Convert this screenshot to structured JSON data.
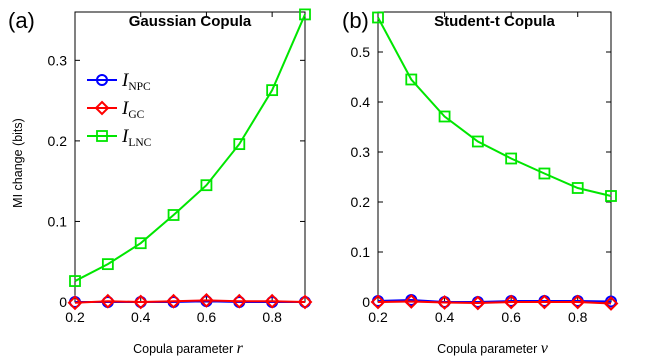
{
  "chart_data": [
    {
      "panel_label": "(a)",
      "type": "line",
      "title": "Gaussian Copula",
      "xlabel": "Copula parameter",
      "xlabel_symbol": "r",
      "ylabel": "MI change (bits)",
      "xlim": [
        0.2,
        0.9
      ],
      "ylim": [
        0,
        0.36
      ],
      "xticks": [
        0.2,
        0.4,
        0.6,
        0.8
      ],
      "yticks": [
        0,
        0.1,
        0.2,
        0.3
      ],
      "x": [
        0.2,
        0.3,
        0.4,
        0.5,
        0.6,
        0.7,
        0.8,
        0.9
      ],
      "legend": "top-left",
      "series": [
        {
          "name": "I",
          "subscript": "NPC",
          "color": "#0000ff",
          "marker": "circle",
          "values": [
            0.0,
            0.0,
            0.0,
            0.0,
            0.001,
            0.0,
            0.0,
            0.0
          ]
        },
        {
          "name": "I",
          "subscript": "GC",
          "color": "#ff0000",
          "marker": "diamond",
          "values": [
            -0.001,
            0.001,
            0.0,
            0.001,
            0.002,
            0.001,
            0.001,
            0.0
          ]
        },
        {
          "name": "I",
          "subscript": "LNC",
          "color": "#00e600",
          "marker": "square",
          "values": [
            0.026,
            0.047,
            0.073,
            0.108,
            0.145,
            0.196,
            0.263,
            0.357
          ]
        }
      ]
    },
    {
      "panel_label": "(b)",
      "type": "line",
      "title": "Student-t Copula",
      "xlabel": "Copula parameter",
      "xlabel_symbol": "ν",
      "ylabel": "",
      "xlim": [
        0.2,
        0.9
      ],
      "ylim": [
        0,
        0.58
      ],
      "xticks": [
        0.2,
        0.4,
        0.6,
        0.8
      ],
      "yticks": [
        0,
        0.1,
        0.2,
        0.3,
        0.4,
        0.5
      ],
      "x": [
        0.2,
        0.3,
        0.4,
        0.5,
        0.6,
        0.7,
        0.8,
        0.9
      ],
      "series": [
        {
          "color": "#0000ff",
          "marker": "circle",
          "values": [
            0.002,
            0.004,
            0.0,
            0.0,
            0.002,
            0.002,
            0.002,
            0.001
          ]
        },
        {
          "color": "#ff0000",
          "marker": "diamond",
          "values": [
            0.0,
            0.001,
            -0.001,
            -0.002,
            0.0,
            0.0,
            0.0,
            -0.003
          ]
        },
        {
          "color": "#00e600",
          "marker": "square",
          "values": [
            0.569,
            0.445,
            0.371,
            0.321,
            0.287,
            0.257,
            0.228,
            0.212
          ]
        }
      ]
    }
  ]
}
